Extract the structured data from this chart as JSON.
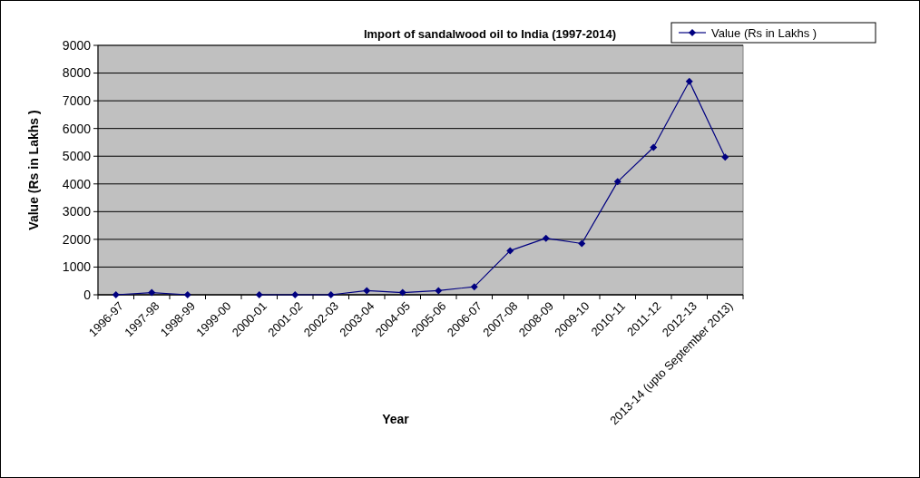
{
  "chart_data": {
    "type": "line",
    "title": "Import of sandalwood oil to India (1997-2014)",
    "xlabel": "Year",
    "ylabel": "Value  (Rs in Lakhs )",
    "categories": [
      "1996-97",
      "1997-98",
      "1998-99",
      "1999-00",
      "2000-01",
      "2001-02",
      "2002-03",
      "2003-04",
      "2004-05",
      "2005-06",
      "2006-07",
      "2007-08",
      "2008-09",
      "2009-10",
      "2010-11",
      "2011-12",
      "2012-13",
      "2013-14 (upto September 2013)"
    ],
    "series": [
      {
        "name": "Value  (Rs in Lakhs )",
        "color": "#000080",
        "values": [
          0,
          80,
          0,
          null,
          0,
          0,
          0,
          150,
          80,
          150,
          290,
          1590,
          2040,
          1850,
          4080,
          5320,
          7700,
          4970
        ]
      }
    ],
    "ylim": [
      0,
      9000
    ],
    "yticks": [
      0,
      1000,
      2000,
      3000,
      4000,
      5000,
      6000,
      7000,
      8000,
      9000
    ],
    "grid": "y",
    "legend": "top right",
    "marker": "diamond",
    "line_style": "solid"
  }
}
